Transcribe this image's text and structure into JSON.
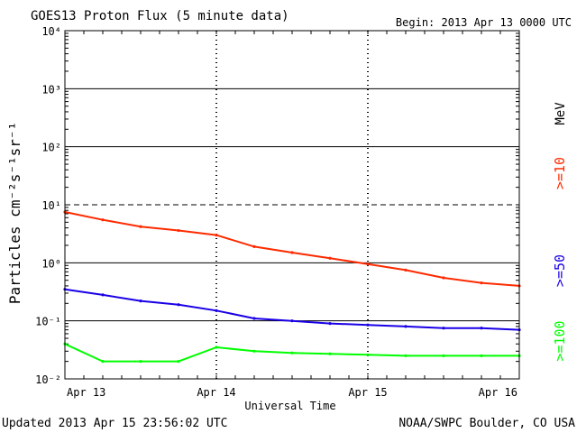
{
  "chart_data": {
    "type": "line",
    "title": "GOES13 Proton Flux (5 minute data)",
    "begin_label": "Begin: 2013 Apr 13 0000 UTC",
    "xlabel": "Universal Time",
    "ylabel": "Particles cm⁻²s⁻¹sr⁻¹",
    "yscale": "log",
    "ylim": [
      0.01,
      10000
    ],
    "y_ticks": [
      {
        "value": 0.01,
        "label": "10⁻²"
      },
      {
        "value": 0.1,
        "label": "10⁻¹"
      },
      {
        "value": 1,
        "label": "10⁰"
      },
      {
        "value": 10,
        "label": "10¹"
      },
      {
        "value": 100,
        "label": "10²"
      },
      {
        "value": 1000,
        "label": "10³"
      },
      {
        "value": 10000,
        "label": "10⁴"
      }
    ],
    "x_ticks": [
      "Apr 13",
      "Apr 14",
      "Apr 15",
      "Apr 16"
    ],
    "xlim_days": [
      0,
      3
    ],
    "threshold_line": 10,
    "unit_label": "MeV",
    "series": [
      {
        "name": ">=10",
        "color": "#ff2a00",
        "x_days": [
          0.0,
          0.25,
          0.5,
          0.75,
          1.0,
          1.25,
          1.5,
          1.75,
          2.0,
          2.25,
          2.5,
          2.75,
          3.0
        ],
        "values": [
          7.5,
          5.5,
          4.2,
          3.6,
          3.0,
          1.9,
          1.5,
          1.2,
          0.95,
          0.75,
          0.55,
          0.45,
          0.4
        ]
      },
      {
        "name": ">=50",
        "color": "#1a00e6",
        "x_days": [
          0.0,
          0.25,
          0.5,
          0.75,
          1.0,
          1.25,
          1.5,
          1.75,
          2.0,
          2.25,
          2.5,
          2.75,
          3.0
        ],
        "values": [
          0.35,
          0.28,
          0.22,
          0.19,
          0.15,
          0.11,
          0.1,
          0.09,
          0.085,
          0.08,
          0.075,
          0.075,
          0.07
        ]
      },
      {
        "name": ">=100",
        "color": "#00ff00",
        "x_days": [
          0.0,
          0.25,
          0.5,
          0.75,
          1.0,
          1.25,
          1.5,
          1.75,
          2.0,
          2.25,
          2.5,
          2.75,
          3.0
        ],
        "values": [
          0.04,
          0.02,
          0.02,
          0.02,
          0.035,
          0.03,
          0.028,
          0.027,
          0.026,
          0.025,
          0.025,
          0.025,
          0.025
        ]
      }
    ]
  },
  "footer": {
    "updated": "Updated 2013 Apr 15 23:56:02 UTC",
    "credit": "NOAA/SWPC Boulder, CO USA"
  }
}
